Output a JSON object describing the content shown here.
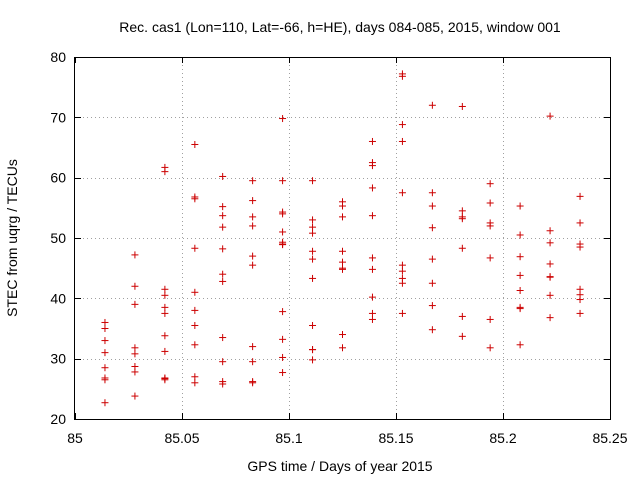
{
  "chart_data": {
    "type": "scatter",
    "title": "Rec. cas1 (Lon=110, Lat=-66, h=HE), days 084-085, 2015, window 001",
    "xlabel": "GPS time / Days of year 2015",
    "ylabel": "STEC from uqrg / TECUs",
    "xlim": [
      85,
      85.25
    ],
    "ylim": [
      20,
      80
    ],
    "xticks": [
      "85",
      "85.05",
      "85.1",
      "85.15",
      "85.2",
      "85.25"
    ],
    "yticks": [
      "20",
      "30",
      "40",
      "50",
      "60",
      "70",
      "80"
    ],
    "grid": true,
    "marker": "+",
    "color": "#cc0000",
    "series": [
      {
        "name": "STEC",
        "x": [
          85.014,
          85.014,
          85.014,
          85.014,
          85.014,
          85.014,
          85.014,
          85.014,
          85.028,
          85.028,
          85.028,
          85.028,
          85.028,
          85.028,
          85.028,
          85.028,
          85.042,
          85.042,
          85.042,
          85.042,
          85.042,
          85.042,
          85.042,
          85.042,
          85.042,
          85.042,
          85.042,
          85.056,
          85.056,
          85.056,
          85.056,
          85.056,
          85.056,
          85.056,
          85.056,
          85.056,
          85.056,
          85.069,
          85.069,
          85.069,
          85.069,
          85.069,
          85.069,
          85.069,
          85.069,
          85.069,
          85.069,
          85.069,
          85.083,
          85.083,
          85.083,
          85.083,
          85.083,
          85.083,
          85.083,
          85.083,
          85.083,
          85.083,
          85.097,
          85.097,
          85.097,
          85.097,
          85.097,
          85.097,
          85.097,
          85.097,
          85.097,
          85.097,
          85.097,
          85.097,
          85.111,
          85.111,
          85.111,
          85.111,
          85.111,
          85.111,
          85.111,
          85.111,
          85.111,
          85.111,
          85.111,
          85.125,
          85.125,
          85.125,
          85.125,
          85.125,
          85.125,
          85.125,
          85.125,
          85.125,
          85.139,
          85.139,
          85.139,
          85.139,
          85.139,
          85.139,
          85.139,
          85.139,
          85.139,
          85.139,
          85.153,
          85.153,
          85.153,
          85.153,
          85.153,
          85.153,
          85.153,
          85.153,
          85.153,
          85.153,
          85.167,
          85.167,
          85.167,
          85.167,
          85.167,
          85.167,
          85.167,
          85.167,
          85.181,
          85.181,
          85.181,
          85.181,
          85.181,
          85.181,
          85.181,
          85.194,
          85.194,
          85.194,
          85.194,
          85.194,
          85.194,
          85.194,
          85.208,
          85.208,
          85.208,
          85.208,
          85.208,
          85.208,
          85.208,
          85.208,
          85.222,
          85.222,
          85.222,
          85.222,
          85.222,
          85.222,
          85.222,
          85.222,
          85.236,
          85.236,
          85.236,
          85.236,
          85.236,
          85.236,
          85.236,
          85.236
        ],
        "y": [
          36.0,
          35.0,
          33.0,
          31.0,
          28.5,
          26.8,
          26.5,
          22.7,
          47.2,
          42.0,
          39.0,
          31.8,
          30.8,
          28.7,
          27.8,
          23.8,
          61.7,
          61.0,
          41.5,
          40.5,
          38.5,
          37.5,
          33.8,
          31.2,
          26.8,
          26.5,
          26.7,
          65.5,
          56.8,
          56.5,
          48.3,
          41.0,
          38.0,
          35.5,
          32.3,
          27.0,
          26.0,
          60.2,
          55.2,
          53.7,
          51.8,
          48.2,
          44.0,
          42.8,
          33.5,
          29.5,
          26.2,
          25.8,
          59.5,
          56.2,
          53.5,
          52.0,
          47.0,
          45.5,
          32.0,
          29.5,
          26.2,
          26.0,
          69.8,
          59.5,
          54.3,
          54.0,
          51.0,
          49.3,
          48.9,
          49.0,
          37.8,
          33.2,
          30.2,
          27.7,
          59.5,
          53.0,
          51.8,
          50.8,
          47.8,
          46.5,
          43.3,
          35.5,
          31.5,
          29.8,
          31.5,
          56.0,
          55.3,
          53.5,
          47.8,
          46.0,
          45.0,
          44.8,
          34.0,
          31.8,
          66.0,
          62.5,
          62.0,
          58.3,
          53.7,
          46.7,
          44.8,
          40.2,
          37.5,
          36.5,
          77.2,
          76.8,
          68.8,
          66.0,
          57.5,
          45.5,
          44.5,
          43.3,
          42.5,
          37.5,
          57.5,
          55.3,
          51.7,
          46.5,
          42.5,
          38.8,
          34.8,
          72.0,
          71.8,
          54.5,
          53.5,
          53.2,
          48.3,
          37.0,
          33.7,
          59.0,
          55.8,
          52.5,
          52.0,
          46.7,
          36.5,
          31.8,
          55.3,
          50.5,
          46.9,
          43.8,
          41.3,
          38.5,
          38.3,
          32.3,
          70.2,
          51.2,
          49.2,
          45.7,
          43.6,
          43.5,
          40.5,
          36.8,
          56.9,
          52.5,
          49.0,
          48.5,
          41.5,
          40.6,
          39.8,
          37.5
        ]
      }
    ]
  }
}
